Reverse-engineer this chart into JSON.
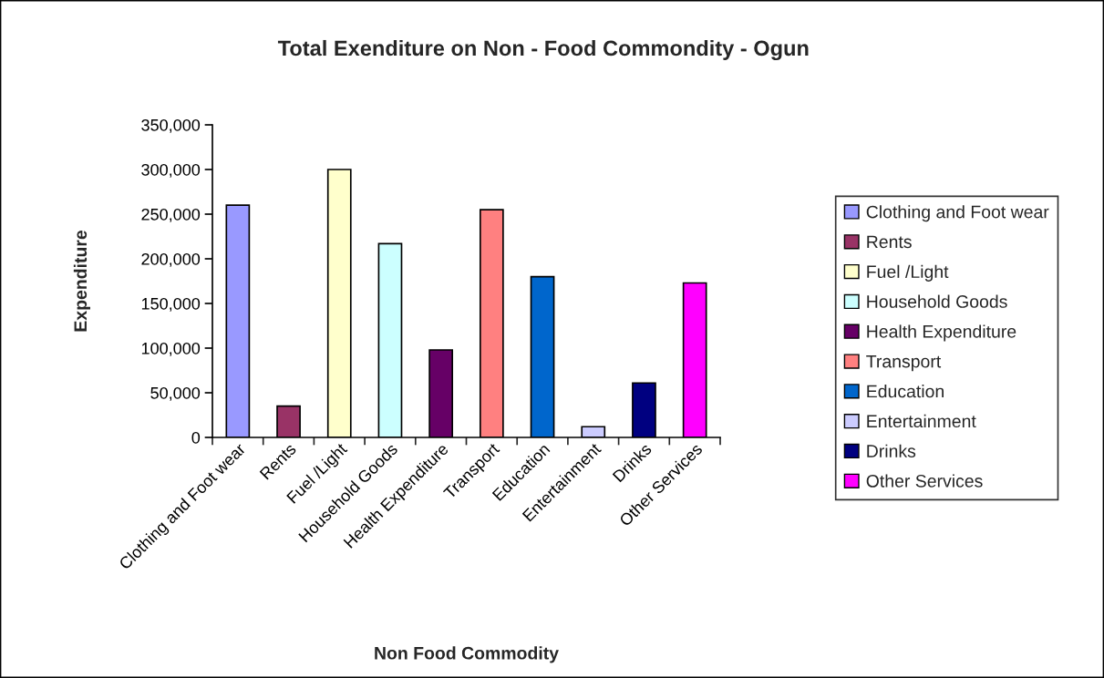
{
  "chart_data": {
    "type": "bar",
    "title": "Total Exenditure on Non - Food Commondity - Ogun",
    "xlabel": "Non Food Commodity",
    "ylabel": "Expenditure",
    "categories": [
      "Clothing and Foot wear",
      "Rents",
      "Fuel /Light",
      "Household Goods",
      "Health Expenditure",
      "Transport",
      "Education",
      "Entertainment",
      "Drinks",
      "Other Services"
    ],
    "series": [
      {
        "name": "Clothing and Foot wear",
        "color": "#9999ff",
        "values": [
          260000,
          null,
          null,
          null,
          null,
          null,
          null,
          null,
          null,
          null
        ]
      },
      {
        "name": "Rents",
        "color": "#993366",
        "values": [
          null,
          35000,
          null,
          null,
          null,
          null,
          null,
          null,
          null,
          null
        ]
      },
      {
        "name": "Fuel /Light",
        "color": "#ffffcc",
        "values": [
          null,
          null,
          300000,
          null,
          null,
          null,
          null,
          null,
          null,
          null
        ]
      },
      {
        "name": "Household Goods",
        "color": "#ccffff",
        "values": [
          null,
          null,
          null,
          217000,
          null,
          null,
          null,
          null,
          null,
          null
        ]
      },
      {
        "name": "Health Expenditure",
        "color": "#660066",
        "values": [
          null,
          null,
          null,
          null,
          98000,
          null,
          null,
          null,
          null,
          null
        ]
      },
      {
        "name": "Transport",
        "color": "#ff8080",
        "values": [
          null,
          null,
          null,
          null,
          null,
          255000,
          null,
          null,
          null,
          null
        ]
      },
      {
        "name": "Education",
        "color": "#0066cc",
        "values": [
          null,
          null,
          null,
          null,
          null,
          null,
          180000,
          null,
          null,
          null
        ]
      },
      {
        "name": "Entertainment",
        "color": "#ccccff",
        "values": [
          null,
          null,
          null,
          null,
          null,
          null,
          null,
          12000,
          null,
          null
        ]
      },
      {
        "name": "Drinks",
        "color": "#000080",
        "values": [
          null,
          null,
          null,
          null,
          null,
          null,
          null,
          null,
          61000,
          null
        ]
      },
      {
        "name": "Other Services",
        "color": "#ff00ff",
        "values": [
          null,
          null,
          null,
          null,
          null,
          null,
          null,
          null,
          null,
          173000
        ]
      }
    ],
    "ylim": [
      0,
      350000
    ],
    "yticks": [
      {
        "value": 0,
        "label": "0"
      },
      {
        "value": 50000,
        "label": "50,000"
      },
      {
        "value": 100000,
        "label": "100,000"
      },
      {
        "value": 150000,
        "label": "150,000"
      },
      {
        "value": 200000,
        "label": "200,000"
      },
      {
        "value": 250000,
        "label": "250,000"
      },
      {
        "value": 300000,
        "label": "300,000"
      },
      {
        "value": 350000,
        "label": "350,000"
      }
    ],
    "grid": false,
    "legend": "right"
  }
}
